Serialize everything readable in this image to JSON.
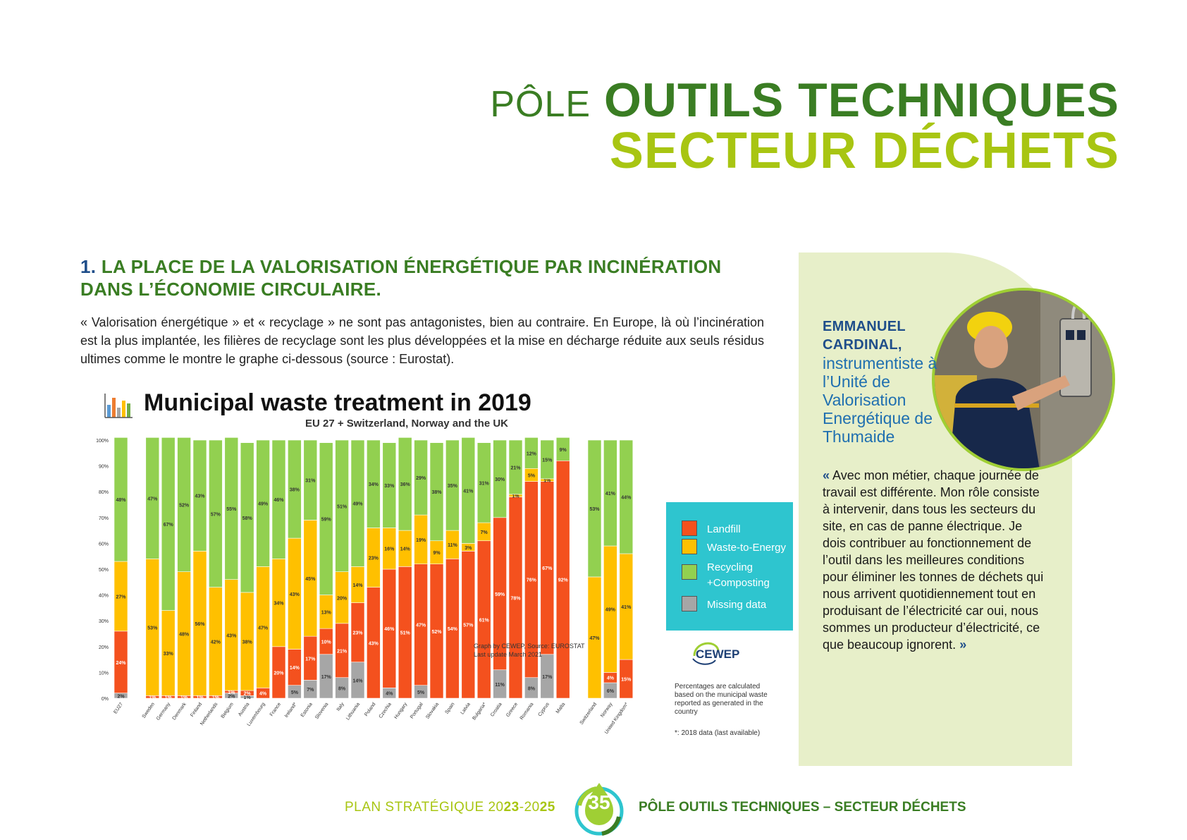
{
  "header": {
    "title_prefix": "PÔLE",
    "title_main": "OUTILS TECHNIQUES",
    "title_sub": "SECTEUR DÉCHETS"
  },
  "section": {
    "number": "1.",
    "heading_line1": "LA PLACE DE LA VALORISATION ÉNERGÉTIQUE PAR INCINÉRATION",
    "heading_line2": "DANS L’ÉCONOMIE CIRCULAIRE.",
    "intro": "« Valorisation énergétique » et « recyclage » ne sont pas antagonistes, bien au contraire. En Europe, là où l’incinération est la plus implantée, les filières de recyclage sont les plus développées et la mise en décharge réduite aux seuls résidus ultimes comme le montre le graphe ci-dessous (source : Eurostat)."
  },
  "chart_data": {
    "type": "bar",
    "stacked": true,
    "title": "Municipal waste treatment in 2019",
    "subtitle": "EU 27 + Switzerland, Norway and the UK",
    "ylim": [
      0,
      100
    ],
    "yticks": [
      "0%",
      "10%",
      "20%",
      "30%",
      "40%",
      "50%",
      "60%",
      "70%",
      "80%",
      "90%",
      "100%"
    ],
    "grid": false,
    "legend_position": "right",
    "categories": [
      "EU27",
      "Sweden",
      "Germany",
      "Denmark",
      "Finland",
      "Netherlands",
      "Belgium",
      "Austria",
      "Luxembourg",
      "France",
      "Ireland*",
      "Estonia",
      "Slovenia",
      "Italy",
      "Lithuania",
      "Poland",
      "Czechia",
      "Hungary",
      "Portugal",
      "Slovakia",
      "Spain",
      "Latvia",
      "Bulgaria*",
      "Croatia",
      "Greece",
      "Romania",
      "Cyprus",
      "Malta",
      "Switzerland",
      "Norway",
      "United Kingdom*"
    ],
    "series": [
      {
        "name": "Missing data",
        "color": "#a6a6a6",
        "values": [
          2,
          0,
          0,
          0,
          0,
          0,
          2,
          1,
          0,
          0,
          5,
          7,
          17,
          8,
          14,
          0,
          4,
          0,
          5,
          0,
          0,
          0,
          0,
          11,
          0,
          8,
          17,
          0,
          0,
          6,
          0
        ]
      },
      {
        "name": "Landfill",
        "color": "#f4511e",
        "values": [
          24,
          1,
          1,
          1,
          1,
          1,
          1,
          2,
          4,
          20,
          14,
          17,
          10,
          21,
          23,
          43,
          46,
          51,
          47,
          52,
          54,
          57,
          61,
          59,
          78,
          76,
          67,
          92,
          0,
          4,
          15
        ]
      },
      {
        "name": "Waste-to-Energy",
        "color": "#ffc000",
        "values": [
          27,
          53,
          33,
          48,
          56,
          42,
          43,
          38,
          47,
          34,
          43,
          45,
          13,
          20,
          14,
          23,
          16,
          14,
          19,
          9,
          11,
          3,
          7,
          0,
          1,
          5,
          1,
          0,
          47,
          49,
          41
        ]
      },
      {
        "name": "Recycling +Composting",
        "color": "#92d050",
        "values": [
          48,
          47,
          67,
          52,
          43,
          57,
          55,
          58,
          49,
          46,
          38,
          31,
          59,
          51,
          49,
          34,
          33,
          36,
          29,
          38,
          35,
          41,
          31,
          30,
          21,
          12,
          15,
          9,
          53,
          41,
          44
        ]
      }
    ],
    "labels": {
      "Missing data": [
        "2%",
        "",
        "",
        "",
        "",
        "",
        "2%",
        "1%",
        "",
        "",
        "5%",
        "7%",
        "17%",
        "8%",
        "14%",
        "",
        "4%",
        "",
        "5%",
        "",
        "",
        "",
        "",
        "11%",
        "",
        "8%",
        "17%",
        "",
        "",
        "6%",
        ""
      ],
      "Landfill": [
        "24%",
        "1%",
        "1%",
        "1%",
        "1%",
        "1%",
        "1%",
        "2%",
        "4%",
        "20%",
        "14%",
        "17%",
        "10%",
        "21%",
        "23%",
        "43%",
        "46%",
        "51%",
        "47%",
        "52%",
        "54%",
        "57%",
        "61%",
        "59%",
        "78%",
        "76%",
        "67%",
        "92%",
        "",
        "4%",
        "15%"
      ],
      "Waste-to-Energy": [
        "27%",
        "53%",
        "33%",
        "48%",
        "56%",
        "42%",
        "43%",
        "38%",
        "47%",
        "34%",
        "43%",
        "45%",
        "13%",
        "20%",
        "14%",
        "23%",
        "16%",
        "14%",
        "19%",
        "9%",
        "11%",
        "3%",
        "7%",
        "",
        "1%",
        "5%",
        "1%",
        "",
        "47%",
        "49%",
        "41%"
      ],
      "Recycling +Composting": [
        "48%",
        "47%",
        "67%",
        "52%",
        "43%",
        "57%",
        "55%",
        "58%",
        "49%",
        "46%",
        "38%",
        "31%",
        "59%",
        "51%",
        "49%",
        "34%",
        "33%",
        "36%",
        "29%",
        "38%",
        "35%",
        "41%",
        "31%",
        "30%",
        "21%",
        "12%",
        "15%",
        "9%",
        "53%",
        "41%",
        "44%"
      ]
    },
    "legend": [
      "Landfill",
      "Waste-to-Energy",
      "Recycling",
      "+Composting",
      "Missing data"
    ],
    "source_line1": "Graph by CEWEP, Source: EUROSTAT",
    "source_line2": "Last update March 2021",
    "note": "Percentages are calculated based on the municipal waste reported as generated in the country",
    "footnote": "*: 2018 data (last available)",
    "logo_text": "CEWEP"
  },
  "sidebar": {
    "name_line1": "EMMANUEL",
    "name_line2": "CARDINAL,",
    "role": "instrumentiste à l’Unité de Valorisation Energétique de Thumaide",
    "quote_open": "«",
    "quote": "Avec mon métier, chaque journée de travail est différente. Mon rôle consiste à intervenir, dans tous les secteurs du site, en cas de panne électrique. Je dois contribuer au fonctionnement de l’outil dans les meilleures conditions pour éliminer les tonnes de déchets qui nous arrivent quotidiennement tout en produisant de l’électricité car oui, nous sommes un producteur d’électricité, ce que beaucoup ignorent.",
    "quote_close": "»"
  },
  "footer": {
    "left_prefix": "PLAN STRATÉGIQUE 20",
    "left_y1": "23",
    "left_mid": "-20",
    "left_y2": "25",
    "page": "35",
    "right": "PÔLE OUTILS TECHNIQUES – SECTEUR DÉCHETS"
  },
  "colors": {
    "dark_green": "#3a7d23",
    "lime": "#a8c512",
    "navy": "#1f4e8a",
    "legend_bg": "#2ec5cf",
    "sidebar_bg": "#e7efc9"
  }
}
